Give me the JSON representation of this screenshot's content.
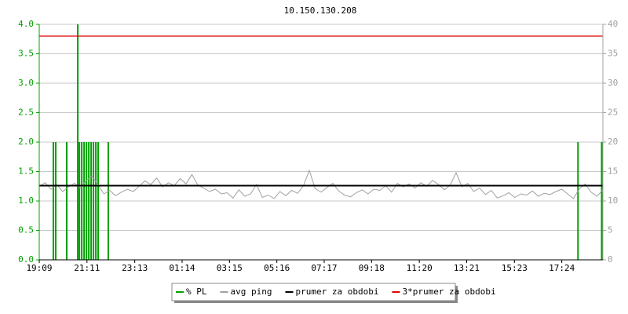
{
  "chart_data": {
    "type": "line",
    "title": "10.150.130.208",
    "xlim": [
      0,
      24
    ],
    "xticks": [
      {
        "value": 0,
        "label": "19:09"
      },
      {
        "value": 2.033,
        "label": "21:11"
      },
      {
        "value": 4.067,
        "label": "23:13"
      },
      {
        "value": 6.083,
        "label": "01:14"
      },
      {
        "value": 8.1,
        "label": "03:15"
      },
      {
        "value": 10.117,
        "label": "05:16"
      },
      {
        "value": 12.133,
        "label": "07:17"
      },
      {
        "value": 14.15,
        "label": "09:18"
      },
      {
        "value": 16.183,
        "label": "11:20"
      },
      {
        "value": 18.2,
        "label": "13:21"
      },
      {
        "value": 20.233,
        "label": "15:23"
      },
      {
        "value": 22.25,
        "label": "17:24"
      }
    ],
    "ylim": [
      0,
      4
    ],
    "yticks": [
      {
        "value": 0,
        "label": "0.0"
      },
      {
        "value": 0.5,
        "label": "0.5"
      },
      {
        "value": 1,
        "label": "1.0"
      },
      {
        "value": 1.5,
        "label": "1.5"
      },
      {
        "value": 2,
        "label": "2.0"
      },
      {
        "value": 2.5,
        "label": "2.5"
      },
      {
        "value": 3,
        "label": "3.0"
      },
      {
        "value": 3.5,
        "label": "3.5"
      },
      {
        "value": 4,
        "label": "4.0"
      }
    ],
    "y2lim": [
      0,
      40
    ],
    "y2ticks": [
      0,
      5,
      10,
      15,
      20,
      25,
      30,
      35,
      40
    ],
    "grid": true,
    "legend": "bottom",
    "series": [
      {
        "name": "% PL",
        "color": "#00a000",
        "style": "bars",
        "x": [
          0.6,
          0.7,
          1.17,
          1.64,
          1.71,
          1.81,
          1.91,
          2.01,
          2.11,
          2.21,
          2.31,
          2.41,
          2.51,
          2.94,
          22.94,
          23.95
        ],
        "values": [
          2,
          2,
          2,
          4,
          2,
          2,
          2,
          2,
          2,
          2,
          2,
          2,
          2,
          2,
          2,
          2
        ]
      },
      {
        "name": "avg ping",
        "color": "#a0a0a0",
        "style": "line",
        "axis": "y2",
        "x": [
          0,
          0.25,
          0.5,
          0.75,
          1,
          1.25,
          1.5,
          1.75,
          2,
          2.25,
          2.5,
          2.75,
          3,
          3.25,
          3.5,
          3.75,
          4,
          4.25,
          4.5,
          4.75,
          5,
          5.25,
          5.5,
          5.75,
          6,
          6.25,
          6.5,
          6.75,
          7,
          7.25,
          7.5,
          7.75,
          8,
          8.25,
          8.5,
          8.75,
          9,
          9.25,
          9.5,
          9.75,
          10,
          10.25,
          10.5,
          10.75,
          11,
          11.25,
          11.5,
          11.75,
          12,
          12.25,
          12.5,
          12.75,
          13,
          13.25,
          13.5,
          13.75,
          14,
          14.25,
          14.5,
          14.75,
          15,
          15.25,
          15.5,
          15.75,
          16,
          16.25,
          16.5,
          16.75,
          17,
          17.25,
          17.5,
          17.75,
          18,
          18.25,
          18.5,
          18.75,
          19,
          19.25,
          19.5,
          19.75,
          20,
          20.25,
          20.5,
          20.75,
          21,
          21.25,
          21.5,
          21.75,
          22,
          22.25,
          22.5,
          22.75,
          23,
          23.25,
          23.5,
          23.75,
          24
        ],
        "values": [
          12.5,
          13.1,
          12.0,
          12.8,
          11.6,
          12.4,
          13.0,
          12.2,
          13.5,
          14.2,
          12.8,
          11.2,
          11.8,
          10.9,
          11.5,
          12.0,
          11.6,
          12.5,
          13.4,
          12.8,
          13.9,
          12.4,
          13.1,
          12.6,
          13.8,
          12.9,
          14.5,
          12.7,
          12.2,
          11.6,
          12.0,
          11.2,
          11.4,
          10.5,
          11.9,
          10.8,
          11.2,
          12.8,
          10.6,
          11.0,
          10.4,
          11.6,
          10.9,
          11.8,
          11.3,
          12.6,
          15.2,
          12.1,
          11.5,
          12.3,
          13.0,
          11.7,
          11.0,
          10.7,
          11.4,
          11.9,
          11.2,
          12.0,
          11.8,
          12.6,
          11.5,
          13.0,
          12.4,
          12.9,
          12.2,
          13.1,
          12.5,
          13.5,
          12.8,
          11.9,
          12.7,
          14.8,
          12.4,
          13.0,
          11.6,
          12.2,
          11.1,
          11.8,
          10.5,
          10.9,
          11.4,
          10.6,
          11.2,
          11.0,
          11.7,
          10.8,
          11.3,
          11.1,
          11.6,
          12.0,
          11.2,
          10.4,
          12.1,
          12.9,
          11.5,
          10.8,
          11.9
        ]
      },
      {
        "name": "prumer za obdobi",
        "color": "#000000",
        "style": "hline",
        "axis": "y2",
        "values": [
          12.6
        ]
      },
      {
        "name": "3*prumer za obdobi",
        "color": "#e00000",
        "style": "hline",
        "axis": "y2",
        "values": [
          38
        ]
      }
    ]
  }
}
